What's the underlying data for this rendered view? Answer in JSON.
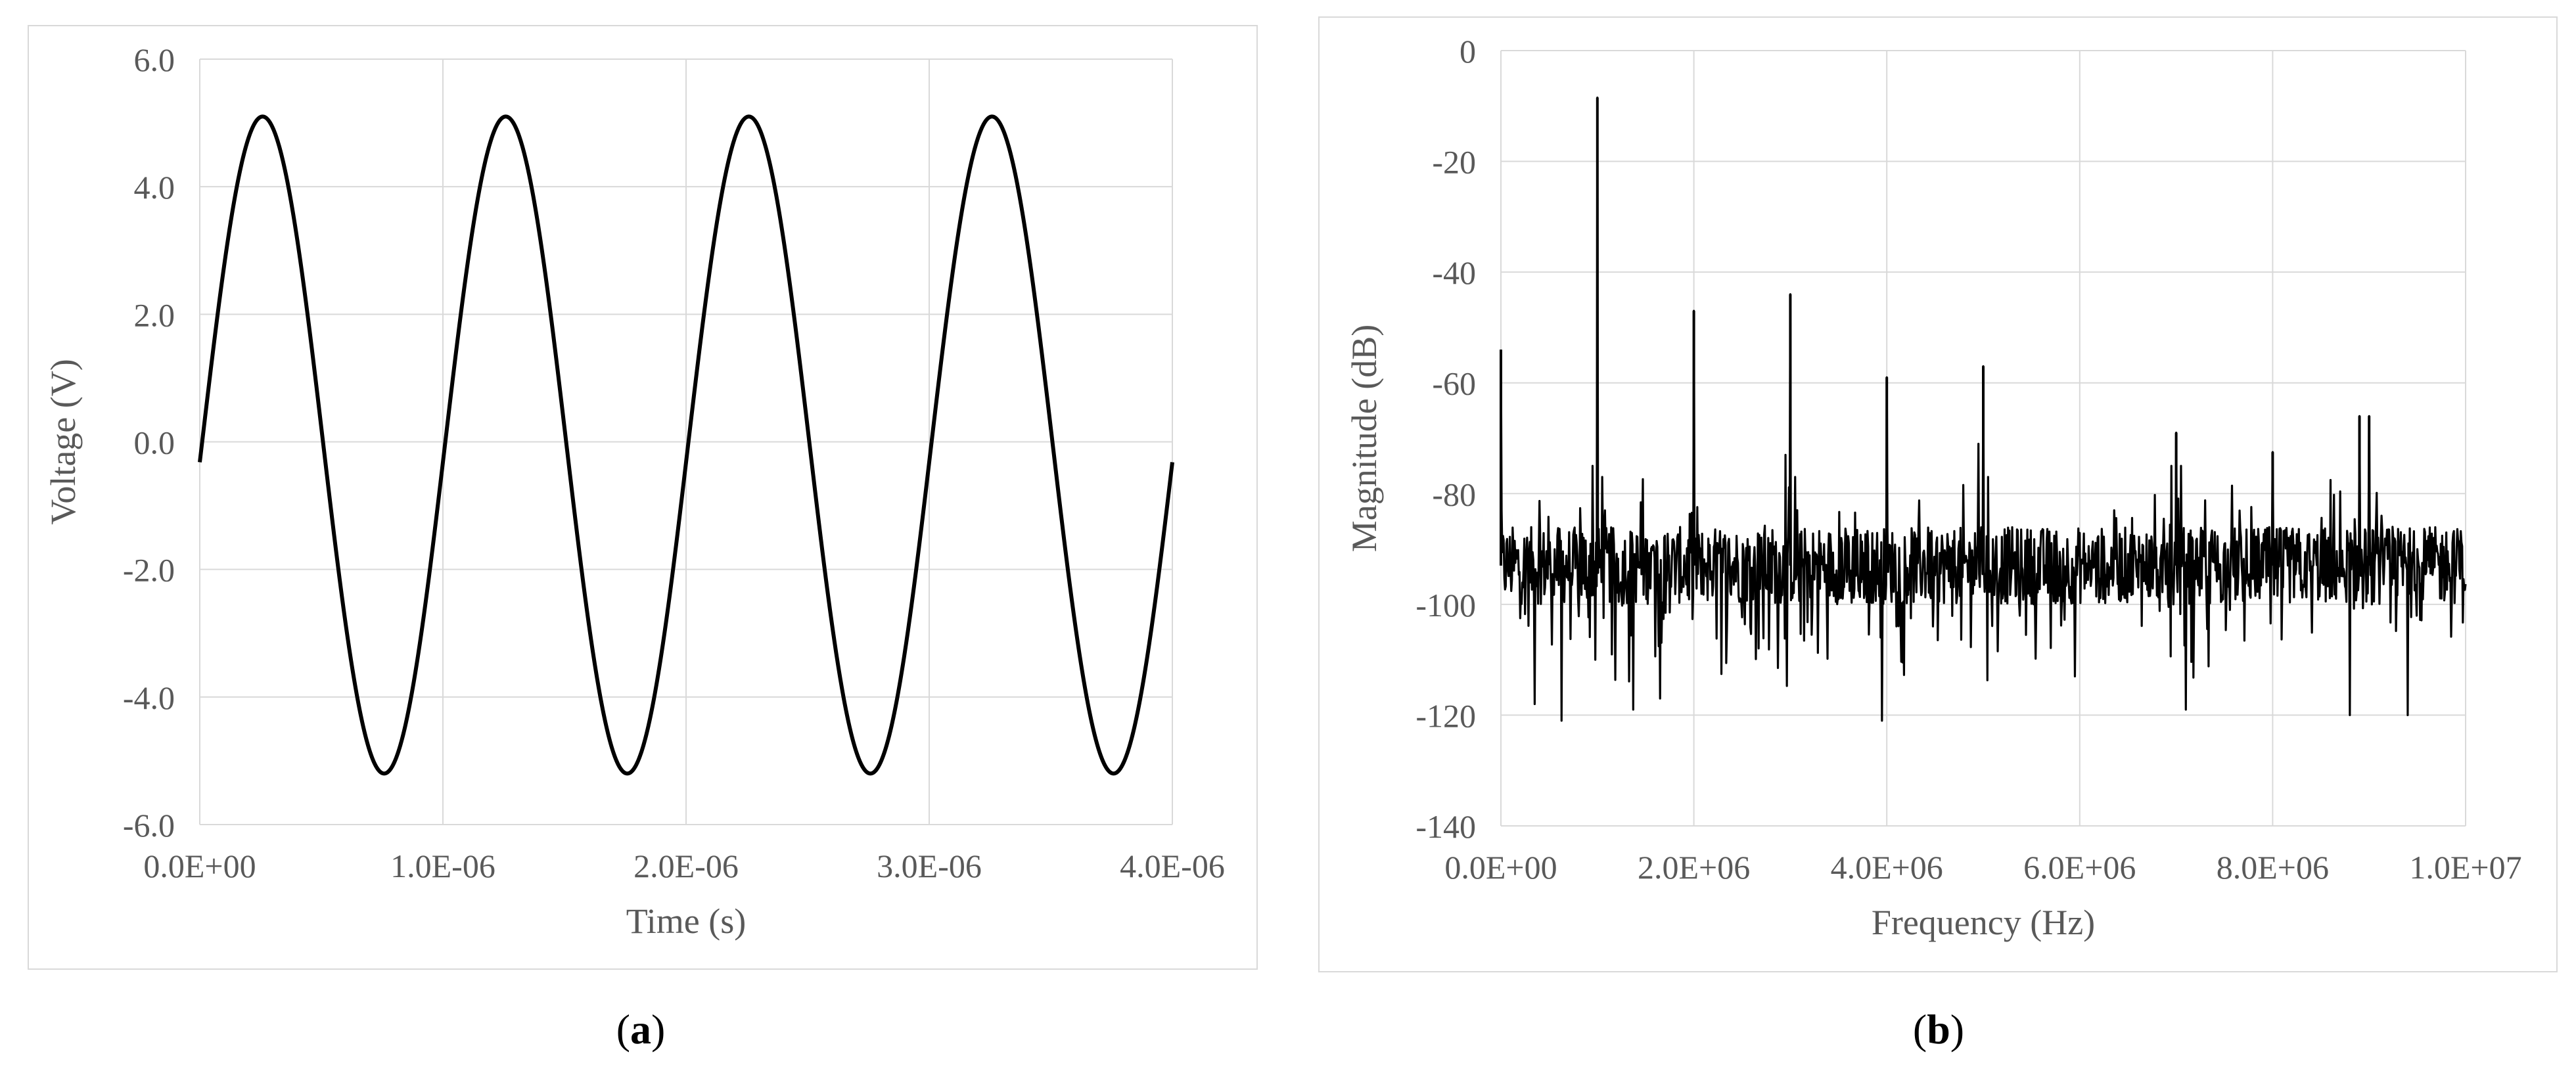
{
  "chart_data": [
    {
      "type": "line",
      "panel": "a",
      "xlabel": "Time (s)",
      "ylabel": "Voltage (V)",
      "xlim": [
        0,
        4e-06
      ],
      "ylim": [
        -6,
        6
      ],
      "x_ticks": [
        "0.0E+00",
        "1.0E-06",
        "2.0E-06",
        "3.0E-06",
        "4.0E-06"
      ],
      "y_ticks": [
        "6.0",
        "4.0",
        "2.0",
        "0.0",
        "-2.0",
        "-4.0",
        "-6.0"
      ],
      "grid": true,
      "series": [
        {
          "signal": "sine",
          "amplitude": 5.15,
          "offset": -0.05,
          "frequency_hz": 1000000,
          "phase_deg": -3,
          "peak": 5.1,
          "trough": -5.2,
          "color": "#000000"
        }
      ]
    },
    {
      "type": "line",
      "panel": "b",
      "xlabel": "Frequency (Hz)",
      "ylabel": "Magnitude (dB)",
      "xlim": [
        0,
        10000000.0
      ],
      "ylim": [
        -140,
        0
      ],
      "x_ticks": [
        "0.0E+00",
        "2.0E+06",
        "4.0E+06",
        "6.0E+06",
        "8.0E+06",
        "1.0E+07"
      ],
      "y_ticks": [
        "0",
        "-20",
        "-40",
        "-60",
        "-80",
        "-100",
        "-120",
        "-140"
      ],
      "grid": true,
      "noise_floor_db": -93,
      "peaks": [
        {
          "freq_hz": 0,
          "db": -54
        },
        {
          "freq_hz": 1000000,
          "db": -8.5
        },
        {
          "freq_hz": 2000000,
          "db": -47
        },
        {
          "freq_hz": 3000000,
          "db": -44
        },
        {
          "freq_hz": 4000000,
          "db": -59
        },
        {
          "freq_hz": 5000000,
          "db": -57
        },
        {
          "freq_hz": 7000000,
          "db": -69
        },
        {
          "freq_hz": 8000000,
          "db": -72.5
        },
        {
          "freq_hz": 8900000,
          "db": -66
        },
        {
          "freq_hz": 9000000,
          "db": -66
        }
      ],
      "minor_peaks": [
        {
          "freq_hz": 950000,
          "db": -75
        },
        {
          "freq_hz": 1050000,
          "db": -77
        },
        {
          "freq_hz": 2950000,
          "db": -73
        },
        {
          "freq_hz": 3050000,
          "db": -77
        },
        {
          "freq_hz": 4950000,
          "db": -71
        },
        {
          "freq_hz": 5050000,
          "db": -77
        },
        {
          "freq_hz": 6950000,
          "db": -75
        },
        {
          "freq_hz": 7050000,
          "db": -75
        }
      ],
      "dips": [
        {
          "freq_hz": 350000,
          "db": -118
        },
        {
          "freq_hz": 630000,
          "db": -121
        },
        {
          "freq_hz": 1370000,
          "db": -119
        },
        {
          "freq_hz": 1650000,
          "db": -117
        },
        {
          "freq_hz": 3950000,
          "db": -121
        },
        {
          "freq_hz": 5950000,
          "db": -113
        },
        {
          "freq_hz": 7100000,
          "db": -119
        },
        {
          "freq_hz": 8800000,
          "db": -120
        },
        {
          "freq_hz": 9400000,
          "db": -120
        }
      ],
      "color": "#000000"
    }
  ],
  "captions": {
    "a": "a",
    "b": "b"
  }
}
